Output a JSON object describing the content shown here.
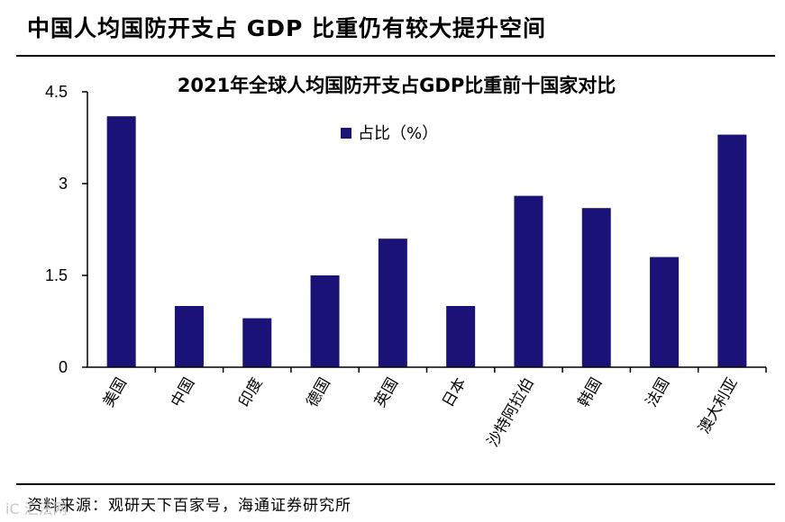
{
  "page": {
    "title": "中国人均国防开支占 GDP 比重仍有较大提升空间",
    "source": "资料来源：观研天下百家号，海通证券研究所",
    "watermark": "iC 汇法网"
  },
  "colors": {
    "bar": "#1a1277",
    "axis": "#000000"
  },
  "chart_data": {
    "type": "bar",
    "title": "2021年全球人均国防开支占GDP比重前十国家对比",
    "categories": [
      "美国",
      "中国",
      "印度",
      "德国",
      "英国",
      "日本",
      "沙特阿拉伯",
      "韩国",
      "法国",
      "澳大利亚"
    ],
    "series": [
      {
        "name": "占比（%）",
        "values": [
          4.1,
          1.0,
          0.8,
          1.5,
          2.1,
          1.0,
          2.8,
          2.6,
          1.8,
          3.8
        ]
      }
    ],
    "ylim": [
      0,
      4.5
    ],
    "yticks": [
      0,
      1.5,
      3,
      4.5
    ],
    "ytick_labels": [
      "0",
      "1.5",
      "3",
      "4.5"
    ],
    "xlabel": "",
    "ylabel": "",
    "legend_position": "top-center",
    "grid": false
  }
}
